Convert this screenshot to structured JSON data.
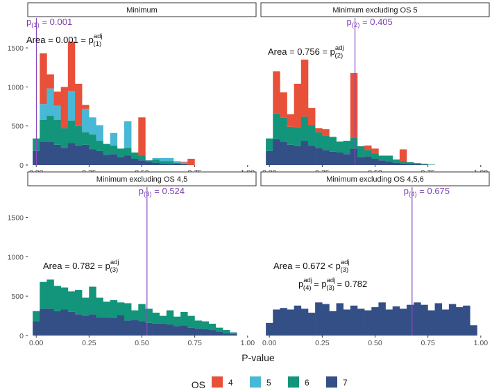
{
  "chart_data": {
    "type": "bar",
    "xlabel": "P-value",
    "x_ticks": [
      "0.00",
      "0.25",
      "0.50",
      "0.75",
      "1.00"
    ],
    "y_ticks": [
      "0",
      "500",
      "1000",
      "1500"
    ],
    "ylim": [
      0,
      1900
    ],
    "xlim": [
      -0.04,
      1.04
    ],
    "bin_width": 0.0333,
    "legend": {
      "title": "OS",
      "entries": [
        {
          "name": "4",
          "color": "#e8503a"
        },
        {
          "name": "5",
          "color": "#49b8d6"
        },
        {
          "name": "6",
          "color": "#12957a"
        },
        {
          "name": "7",
          "color": "#344e86"
        }
      ]
    },
    "panels": [
      {
        "title": "Minimum",
        "vline_x": 0.001,
        "p_label": {
          "base": "p",
          "sub": "(1)",
          "text": " = 0.001"
        },
        "annotations": [
          {
            "kind": "area",
            "text": "Area = 0.001 = ",
            "sup": "adj",
            "sub": "(1)"
          }
        ],
        "series": [
          {
            "name": "7",
            "values": [
              180,
              300,
              300,
              260,
              220,
              280,
              250,
              260,
              200,
              180,
              130,
              140,
              100,
              120,
              80,
              60,
              40,
              30,
              20,
              10,
              20,
              10,
              0,
              0,
              0,
              0,
              0,
              0,
              0,
              0
            ]
          },
          {
            "name": "6",
            "values": [
              160,
              280,
              330,
              320,
              250,
              290,
              250,
              160,
              190,
              130,
              140,
              110,
              110,
              100,
              80,
              60,
              20,
              40,
              30,
              40,
              10,
              10,
              0,
              0,
              0,
              0,
              0,
              0,
              0,
              0
            ]
          },
          {
            "name": "5",
            "values": [
              0,
              200,
              350,
              180,
              0,
              380,
              0,
              300,
              220,
              200,
              0,
              160,
              0,
              340,
              0,
              0,
              0,
              20,
              40,
              40,
              20,
              10,
              0,
              0,
              0,
              0,
              0,
              0,
              0,
              0
            ]
          },
          {
            "name": "4",
            "values": [
              0,
              650,
              180,
              180,
              530,
              630,
              540,
              50,
              0,
              0,
              0,
              0,
              0,
              0,
              0,
              490,
              0,
              0,
              0,
              0,
              0,
              10,
              80,
              0,
              0,
              0,
              0,
              0,
              0,
              0
            ]
          }
        ]
      },
      {
        "title": "Minimum excluding OS 5",
        "vline_x": 0.405,
        "p_label": {
          "base": "p",
          "sub": "(2)",
          "text": " = 0.405"
        },
        "annotations": [
          {
            "kind": "area",
            "text": "Area = 0.756 = ",
            "sup": "adj",
            "sub": "(2)"
          }
        ],
        "series": [
          {
            "name": "7",
            "values": [
              180,
              330,
              300,
              260,
              240,
              310,
              250,
              220,
              190,
              170,
              160,
              140,
              210,
              100,
              110,
              80,
              60,
              40,
              30,
              20,
              15,
              10,
              5,
              0,
              0,
              0,
              0,
              0,
              0,
              0
            ]
          },
          {
            "name": "6",
            "values": [
              160,
              330,
              310,
              230,
              240,
              310,
              260,
              200,
              190,
              190,
              140,
              170,
              140,
              140,
              80,
              70,
              60,
              80,
              40,
              30,
              20,
              15,
              10,
              5,
              0,
              0,
              0,
              0,
              0,
              0
            ]
          },
          {
            "name": "4",
            "values": [
              0,
              540,
              320,
              160,
              560,
              730,
              220,
              50,
              80,
              0,
              0,
              0,
              830,
              0,
              60,
              60,
              0,
              0,
              0,
              150,
              0,
              0,
              0,
              0,
              0,
              0,
              0,
              0,
              0,
              0
            ]
          }
        ]
      },
      {
        "title": "Minimum excluding OS 4,5",
        "vline_x": 0.524,
        "p_label": {
          "base": "p",
          "sub": "(3)",
          "text": " = 0.524"
        },
        "annotations": [
          {
            "kind": "area",
            "text": "Area = 0.782 = ",
            "sup": "adj",
            "sub": "(3)"
          }
        ],
        "series": [
          {
            "name": "7",
            "values": [
              180,
              340,
              340,
              310,
              330,
              300,
              270,
              250,
              270,
              230,
              230,
              220,
              260,
              190,
              200,
              180,
              160,
              150,
              150,
              140,
              120,
              130,
              100,
              90,
              80,
              70,
              50,
              30,
              20,
              0
            ]
          },
          {
            "name": "6",
            "values": [
              130,
              340,
              370,
              320,
              280,
              260,
              310,
              230,
              350,
              250,
              200,
              230,
              160,
              220,
              120,
              220,
              180,
              140,
              100,
              180,
              120,
              170,
              150,
              100,
              100,
              80,
              50,
              40,
              20,
              0
            ]
          }
        ]
      },
      {
        "title": "Minimum excluding OS 4,5,6",
        "vline_x": 0.675,
        "p_label": {
          "base": "p",
          "sub": "(4)",
          "text": " = 0.675"
        },
        "annotations": [
          {
            "kind": "area",
            "text": "Area = 0.672 < ",
            "sup": "adj",
            "sub": "(3)"
          },
          {
            "kind": "equality",
            "text1": "p",
            "sup1": "adj",
            "sub1": "(4)",
            "mid": " = ",
            "text2": "p",
            "sup2": "adj",
            "sub2": "(3)",
            "tail": " = 0.782"
          }
        ],
        "series": [
          {
            "name": "7",
            "values": [
              160,
              330,
              350,
              330,
              380,
              340,
              290,
              420,
              400,
              310,
              410,
              330,
              380,
              340,
              320,
              360,
              420,
              330,
              370,
              340,
              390,
              420,
              390,
              320,
              410,
              330,
              400,
              360,
              380,
              130
            ]
          }
        ]
      }
    ]
  }
}
